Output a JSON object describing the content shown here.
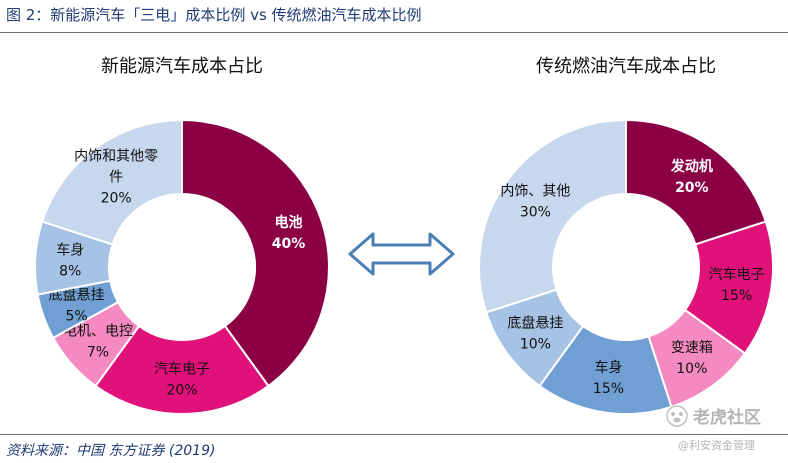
{
  "figure": {
    "title": "图 2：新能源汽车「三电」成本比例 vs 传统燃油汽车成本比例",
    "source": "资料来源：中国 东方证券 (2019)"
  },
  "watermark": {
    "name": "老虎社区",
    "sub": "@利安资金管理",
    "icon": "tiger-paw-icon"
  },
  "arrow": {
    "icon": "double-arrow-icon",
    "color": "#4a7eb5"
  },
  "chart_data": [
    {
      "type": "pie",
      "donut": true,
      "title": "新能源汽车成本占比",
      "legend": "none",
      "slices": [
        {
          "label": "电池",
          "value": 40,
          "value_label": "40%",
          "color": "#8b0045",
          "text_color": "#ffffff",
          "bold": true
        },
        {
          "label": "汽车电子",
          "value": 20,
          "value_label": "20%",
          "color": "#e0127a",
          "text_color": "#111111",
          "bold": false
        },
        {
          "label": "电机、电控",
          "value": 7,
          "value_label": "7%",
          "color": "#f58ac2",
          "text_color": "#111111",
          "bold": false
        },
        {
          "label": "底盘悬挂",
          "value": 5,
          "value_label": "5%",
          "color": "#6f9fd3",
          "text_color": "#111111",
          "bold": false
        },
        {
          "label": "车身",
          "value": 8,
          "value_label": "8%",
          "color": "#a6c3e6",
          "text_color": "#111111",
          "bold": false
        },
        {
          "label": "内饰和其他零件",
          "label_lines": [
            "内饰和其他零",
            "件"
          ],
          "value": 20,
          "value_label": "20%",
          "color": "#c7d7ee",
          "text_color": "#111111",
          "bold": false
        }
      ]
    },
    {
      "type": "pie",
      "donut": true,
      "title": "传统燃油汽车成本占比",
      "legend": "none",
      "slices": [
        {
          "label": "发动机",
          "value": 20,
          "value_label": "20%",
          "color": "#8b0045",
          "text_color": "#ffffff",
          "bold": true
        },
        {
          "label": "汽车电子",
          "value": 15,
          "value_label": "15%",
          "color": "#e0127a",
          "text_color": "#111111",
          "bold": false
        },
        {
          "label": "变速箱",
          "value": 10,
          "value_label": "10%",
          "color": "#f58ac2",
          "text_color": "#111111",
          "bold": false
        },
        {
          "label": "车身",
          "value": 15,
          "value_label": "15%",
          "color": "#6f9fd3",
          "text_color": "#111111",
          "bold": false
        },
        {
          "label": "底盘悬挂",
          "value": 10,
          "value_label": "10%",
          "color": "#a6c3e6",
          "text_color": "#111111",
          "bold": false
        },
        {
          "label": "内饰、其他",
          "value": 30,
          "value_label": "30%",
          "color": "#c7d7ee",
          "text_color": "#111111",
          "bold": false
        }
      ]
    }
  ]
}
